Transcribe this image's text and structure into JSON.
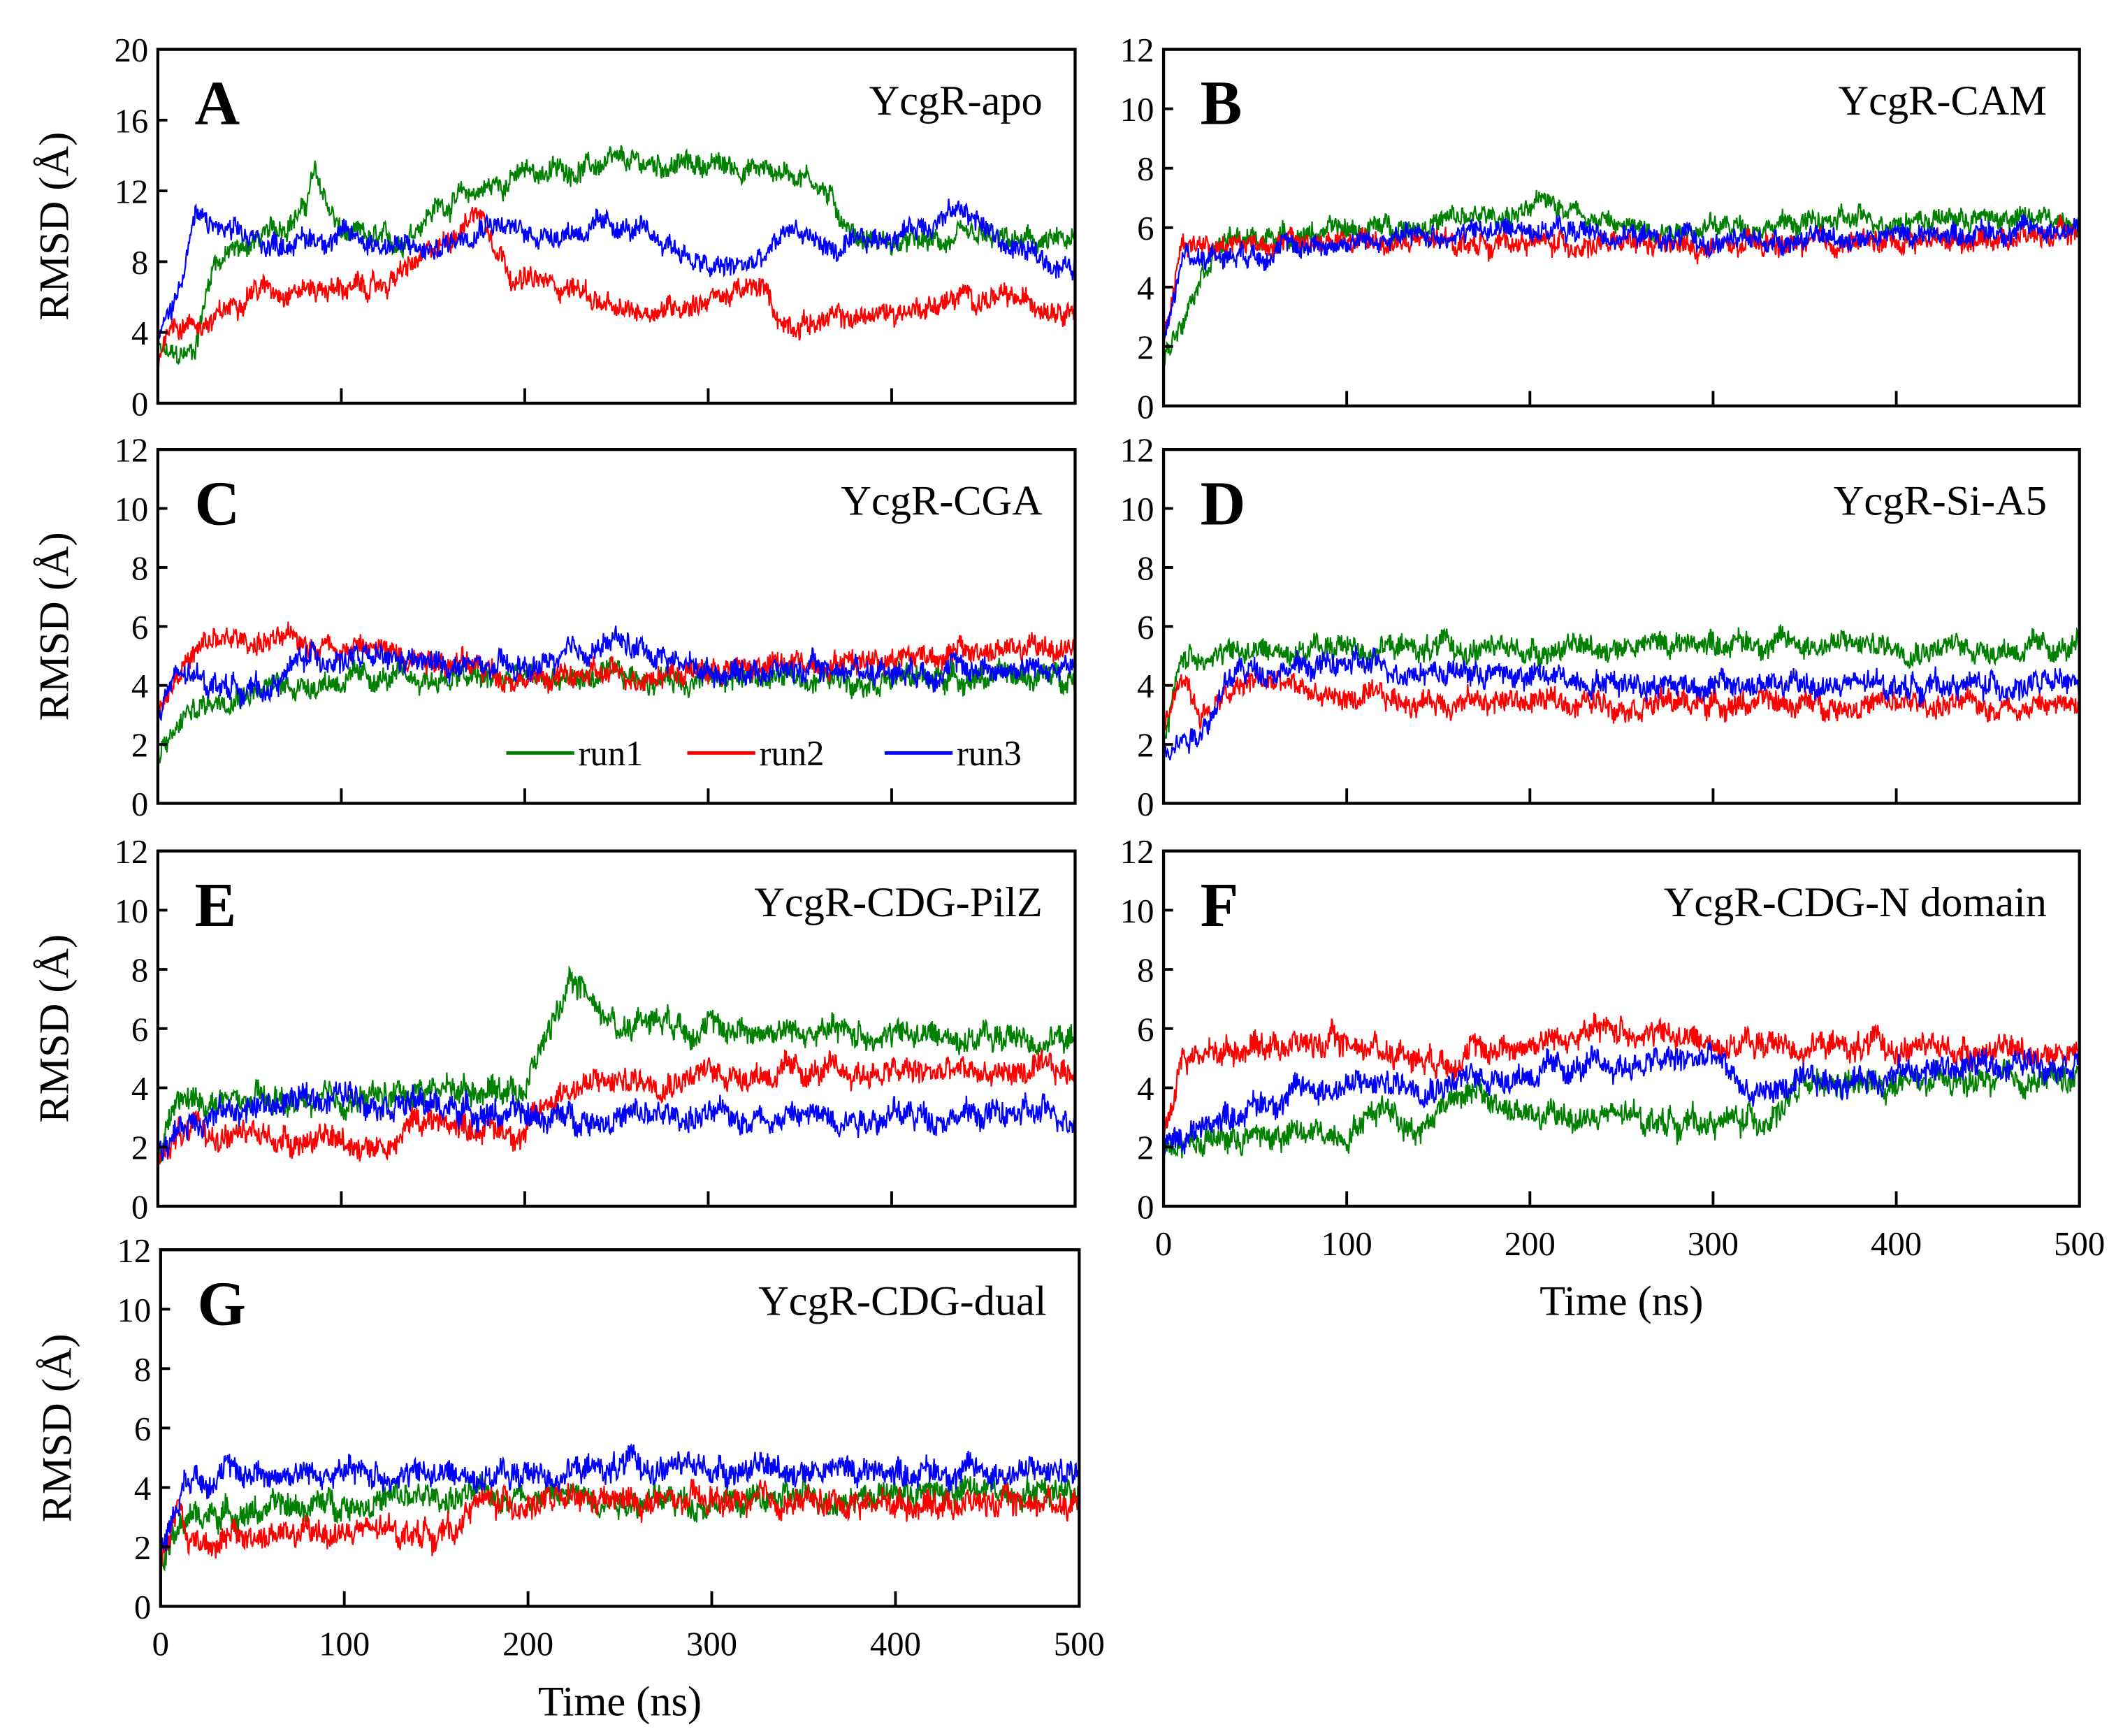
{
  "colors": {
    "run1": "#008000",
    "run2": "#ff0000",
    "run3": "#0000ff",
    "axis": "#000000"
  },
  "chart_data": [
    {
      "type": "line",
      "panel": "A",
      "title": "YcgR-apo",
      "xlabel": "",
      "ylabel": "RMSD (Å)",
      "xlim": [
        0,
        500
      ],
      "ylim": [
        0,
        20
      ],
      "y_ticks": [
        0,
        4,
        8,
        12,
        16,
        20
      ],
      "x_ticks": [
        0,
        100,
        200,
        300,
        400,
        500
      ],
      "show_x_tick_labels": false,
      "noise": 0.7,
      "series": [
        {
          "name": "run1",
          "points": [
            [
              0,
              3
            ],
            [
              10,
              2.5
            ],
            [
              20,
              3
            ],
            [
              30,
              8
            ],
            [
              60,
              9.5
            ],
            [
              80,
              11
            ],
            [
              85,
              13
            ],
            [
              100,
              9.5
            ],
            [
              130,
              9
            ],
            [
              150,
              11
            ],
            [
              200,
              13
            ],
            [
              250,
              13.5
            ],
            [
              300,
              13.5
            ],
            [
              350,
              13
            ],
            [
              360,
              12.5
            ],
            [
              380,
              9.5
            ],
            [
              400,
              9
            ],
            [
              450,
              9.2
            ],
            [
              500,
              9
            ]
          ]
        },
        {
          "name": "run2",
          "points": [
            [
              0,
              2
            ],
            [
              5,
              4.5
            ],
            [
              30,
              4.5
            ],
            [
              50,
              6.5
            ],
            [
              120,
              6.5
            ],
            [
              150,
              8.5
            ],
            [
              175,
              11
            ],
            [
              185,
              9
            ],
            [
              195,
              7
            ],
            [
              230,
              6.5
            ],
            [
              250,
              5
            ],
            [
              280,
              5.5
            ],
            [
              330,
              6.5
            ],
            [
              340,
              4.5
            ],
            [
              380,
              4.8
            ],
            [
              420,
              5.5
            ],
            [
              440,
              6
            ],
            [
              500,
              5.5
            ]
          ]
        },
        {
          "name": "run3",
          "points": [
            [
              0,
              3.5
            ],
            [
              10,
              6
            ],
            [
              20,
              10.5
            ],
            [
              40,
              9.5
            ],
            [
              60,
              9
            ],
            [
              100,
              9.5
            ],
            [
              150,
              8.5
            ],
            [
              180,
              10.5
            ],
            [
              200,
              9.5
            ],
            [
              250,
              10
            ],
            [
              280,
              9
            ],
            [
              300,
              7.5
            ],
            [
              330,
              8
            ],
            [
              345,
              10
            ],
            [
              370,
              8.5
            ],
            [
              400,
              9.5
            ],
            [
              440,
              11
            ],
            [
              460,
              9
            ],
            [
              500,
              7.5
            ]
          ]
        }
      ]
    },
    {
      "type": "line",
      "panel": "B",
      "title": "YcgR-CAM",
      "xlabel": "",
      "ylabel": "",
      "xlim": [
        0,
        500
      ],
      "ylim": [
        0,
        12
      ],
      "y_ticks": [
        0,
        2,
        4,
        6,
        8,
        10,
        12
      ],
      "x_ticks": [
        0,
        100,
        200,
        300,
        400,
        500
      ],
      "show_x_tick_labels": false,
      "noise": 0.4,
      "series": [
        {
          "name": "run1",
          "points": [
            [
              0,
              1.5
            ],
            [
              20,
              4.5
            ],
            [
              30,
              5.5
            ],
            [
              200,
              6.5
            ],
            [
              210,
              7
            ],
            [
              250,
              6
            ],
            [
              300,
              6
            ],
            [
              400,
              6.3
            ],
            [
              500,
              6.3
            ]
          ]
        },
        {
          "name": "run2",
          "points": [
            [
              0,
              2
            ],
            [
              10,
              5.5
            ],
            [
              200,
              5.5
            ],
            [
              300,
              5.3
            ],
            [
              500,
              5.8
            ]
          ]
        },
        {
          "name": "run3",
          "points": [
            [
              0,
              2
            ],
            [
              10,
              5
            ],
            [
              100,
              5.5
            ],
            [
              200,
              6
            ],
            [
              300,
              5.5
            ],
            [
              500,
              6
            ]
          ]
        }
      ]
    },
    {
      "type": "line",
      "panel": "C",
      "title": "YcgR-CGA",
      "xlabel": "",
      "ylabel": "RMSD (Å)",
      "xlim": [
        0,
        500
      ],
      "ylim": [
        0,
        12
      ],
      "y_ticks": [
        0,
        2,
        4,
        6,
        8,
        10,
        12
      ],
      "x_ticks": [
        0,
        100,
        200,
        300,
        400,
        500
      ],
      "show_x_tick_labels": false,
      "noise": 0.45,
      "legend": [
        "run1",
        "run2",
        "run3"
      ],
      "series": [
        {
          "name": "run1",
          "points": [
            [
              0,
              1.5
            ],
            [
              15,
              3
            ],
            [
              40,
              3.8
            ],
            [
              100,
              4.2
            ],
            [
              500,
              4.3
            ]
          ]
        },
        {
          "name": "run2",
          "points": [
            [
              0,
              3
            ],
            [
              10,
              4.5
            ],
            [
              30,
              5.5
            ],
            [
              80,
              5.5
            ],
            [
              150,
              5
            ],
            [
              200,
              4.2
            ],
            [
              300,
              4.5
            ],
            [
              400,
              5
            ],
            [
              500,
              5.3
            ]
          ]
        },
        {
          "name": "run3",
          "points": [
            [
              0,
              3
            ],
            [
              10,
              4.3
            ],
            [
              60,
              3.8
            ],
            [
              80,
              5
            ],
            [
              200,
              4.5
            ],
            [
              250,
              5.5
            ],
            [
              300,
              4.5
            ],
            [
              500,
              4.6
            ]
          ]
        }
      ]
    },
    {
      "type": "line",
      "panel": "D",
      "title": "YcgR-Si-A5",
      "xlabel": "",
      "ylabel": "",
      "xlim": [
        0,
        500
      ],
      "ylim": [
        0,
        12
      ],
      "y_ticks": [
        0,
        2,
        4,
        6,
        8,
        10,
        12
      ],
      "x_ticks": [
        0,
        100,
        200,
        300,
        400,
        500
      ],
      "show_x_tick_labels": false,
      "noise": 0.45,
      "series": [
        {
          "name": "run1",
          "points": [
            [
              0,
              2
            ],
            [
              10,
              5
            ],
            [
              100,
              5.3
            ],
            [
              200,
              5.2
            ],
            [
              300,
              5.5
            ],
            [
              500,
              5.2
            ]
          ]
        },
        {
          "name": "run2",
          "points": [
            [
              0,
              2.5
            ],
            [
              10,
              4.5
            ],
            [
              20,
              3
            ],
            [
              50,
              4.2
            ],
            [
              100,
              3.5
            ],
            [
              500,
              3.3
            ]
          ]
        },
        {
          "name": "run3",
          "points": [
            [
              0,
              2
            ],
            [
              20,
              2.5
            ],
            [
              40,
              4.5
            ],
            [
              100,
              4.7
            ],
            [
              200,
              4.3
            ],
            [
              300,
              4
            ],
            [
              500,
              4
            ]
          ]
        }
      ]
    },
    {
      "type": "line",
      "panel": "E",
      "title": "YcgR-CDG-PilZ",
      "xlabel": "",
      "ylabel": "RMSD (Å)",
      "xlim": [
        0,
        500
      ],
      "ylim": [
        0,
        12
      ],
      "y_ticks": [
        0,
        2,
        4,
        6,
        8,
        10,
        12
      ],
      "x_ticks": [
        0,
        100,
        200,
        300,
        400,
        500
      ],
      "show_x_tick_labels": false,
      "noise": 0.5,
      "series": [
        {
          "name": "run1",
          "points": [
            [
              0,
              1.5
            ],
            [
              10,
              3.5
            ],
            [
              100,
              3.5
            ],
            [
              150,
              4
            ],
            [
              200,
              4
            ],
            [
              220,
              7
            ],
            [
              230,
              7.5
            ],
            [
              250,
              6
            ],
            [
              270,
              6.5
            ],
            [
              300,
              6
            ],
            [
              500,
              5.6
            ]
          ]
        },
        {
          "name": "run2",
          "points": [
            [
              0,
              1.5
            ],
            [
              10,
              2.5
            ],
            [
              100,
              2.2
            ],
            [
              130,
              2
            ],
            [
              140,
              3
            ],
            [
              200,
              2.5
            ],
            [
              220,
              4
            ],
            [
              300,
              4.5
            ],
            [
              500,
              4.5
            ]
          ]
        },
        {
          "name": "run3",
          "points": [
            [
              0,
              2
            ],
            [
              20,
              3
            ],
            [
              100,
              3.8
            ],
            [
              200,
              3
            ],
            [
              220,
              3
            ],
            [
              500,
              3.1
            ]
          ]
        }
      ]
    },
    {
      "type": "line",
      "panel": "F",
      "title": "YcgR-CDG-N domain",
      "xlabel": "Time (ns)",
      "ylabel": "",
      "xlim": [
        0,
        500
      ],
      "ylim": [
        0,
        12
      ],
      "y_ticks": [
        0,
        2,
        4,
        6,
        8,
        10,
        12
      ],
      "x_ticks": [
        0,
        100,
        200,
        300,
        400,
        500
      ],
      "show_x_tick_labels": true,
      "noise": 0.5,
      "series": [
        {
          "name": "run1",
          "points": [
            [
              0,
              2
            ],
            [
              10,
              2.2
            ],
            [
              100,
              2.5
            ],
            [
              120,
              3.5
            ],
            [
              140,
              2.5
            ],
            [
              160,
              4
            ],
            [
              200,
              3
            ],
            [
              250,
              3
            ],
            [
              300,
              2.8
            ],
            [
              330,
              3
            ],
            [
              350,
              4
            ],
            [
              500,
              4.3
            ]
          ]
        },
        {
          "name": "run2",
          "points": [
            [
              0,
              2.5
            ],
            [
              10,
              5
            ],
            [
              50,
              5.5
            ],
            [
              100,
              5.5
            ],
            [
              150,
              5
            ],
            [
              200,
              5.5
            ],
            [
              250,
              6
            ],
            [
              300,
              5.5
            ],
            [
              500,
              5.2
            ]
          ]
        },
        {
          "name": "run3",
          "points": [
            [
              0,
              2
            ],
            [
              30,
              3
            ],
            [
              80,
              4
            ],
            [
              150,
              4.2
            ],
            [
              200,
              4.5
            ],
            [
              300,
              5
            ],
            [
              320,
              3.8
            ],
            [
              400,
              4.5
            ],
            [
              500,
              5
            ]
          ]
        }
      ]
    },
    {
      "type": "line",
      "panel": "G",
      "title": "YcgR-CDG-dual",
      "xlabel": "Time (ns)",
      "ylabel": "RMSD (Å)",
      "xlim": [
        0,
        500
      ],
      "ylim": [
        0,
        12
      ],
      "y_ticks": [
        0,
        2,
        4,
        6,
        8,
        10,
        12
      ],
      "x_ticks": [
        0,
        100,
        200,
        300,
        400,
        500
      ],
      "show_x_tick_labels": true,
      "noise": 0.5,
      "series": [
        {
          "name": "run1",
          "points": [
            [
              0,
              1.5
            ],
            [
              15,
              3
            ],
            [
              100,
              3.5
            ],
            [
              200,
              3.8
            ],
            [
              300,
              3.5
            ],
            [
              400,
              3.8
            ],
            [
              500,
              4
            ]
          ]
        },
        {
          "name": "run2",
          "points": [
            [
              0,
              1.5
            ],
            [
              10,
              3.5
            ],
            [
              15,
              2.2
            ],
            [
              100,
              2.5
            ],
            [
              160,
              2.5
            ],
            [
              170,
              3.5
            ],
            [
              300,
              3.5
            ],
            [
              500,
              3.5
            ]
          ]
        },
        {
          "name": "run3",
          "points": [
            [
              0,
              2
            ],
            [
              15,
              4.5
            ],
            [
              200,
              4.4
            ],
            [
              250,
              4.7
            ],
            [
              500,
              4.5
            ]
          ]
        }
      ]
    }
  ]
}
